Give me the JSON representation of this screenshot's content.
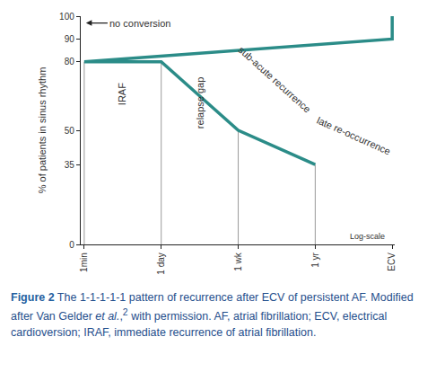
{
  "chart_data": {
    "type": "line",
    "y_label": "% of patients in sinus rhythm",
    "categories": [
      "ECV",
      "ECV",
      "1min",
      "1 day",
      "1 wk",
      "1 yr"
    ],
    "values": [
      100,
      90,
      80,
      80,
      50,
      35
    ],
    "color": "#2b8c88",
    "ylim": [
      0,
      100
    ],
    "yticks": [
      0,
      35,
      50,
      80,
      90,
      100
    ],
    "grid": false,
    "annotations": [
      {
        "text": "no conversion"
      },
      {
        "text": "IRAF"
      },
      {
        "text": "relapse gap"
      },
      {
        "text": "sub-acute recurrence"
      },
      {
        "text": "late re-occurrence"
      },
      {
        "text": "Log-scale"
      }
    ],
    "caption": [
      {
        "text": "Figure 2",
        "style": "bold"
      },
      {
        "text": " The 1-1-1-1-1 pattern of recurrence after ECV of persistent AF. Modified after Van Gelder ",
        "style": "normal"
      },
      {
        "text": "et al.",
        "style": "italic"
      },
      {
        "text": ",",
        "style": "normal"
      },
      {
        "text": "2",
        "style": "superscript"
      },
      {
        "text": " with permission. AF, atrial fibrillation; ECV, electrical cardioversion; IRAF, immediate recurrence of atrial fibrillation.",
        "style": "normal"
      }
    ]
  }
}
